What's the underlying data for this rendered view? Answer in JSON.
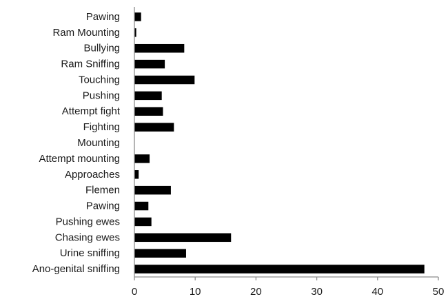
{
  "chart_data": {
    "type": "bar",
    "orientation": "horizontal",
    "title": "",
    "xlabel": "",
    "ylabel": "",
    "categories": [
      "Pawing",
      "Ram Mounting",
      "Bullying",
      "Ram Sniffing",
      "Touching",
      "Pushing",
      "Attempt fight",
      "Fighting",
      "Mounting",
      "Attempt mounting",
      "Approaches",
      "Flemen",
      "Pawing",
      "Pushing ewes",
      "Chasing ewes",
      "Urine sniffing",
      "Ano-genital sniffing"
    ],
    "values": [
      1.1,
      0.3,
      8.2,
      5.0,
      9.9,
      4.5,
      4.7,
      6.5,
      0,
      2.5,
      0.7,
      6.0,
      2.3,
      2.8,
      15.9,
      8.5,
      47.7
    ],
    "xlim": [
      0,
      50
    ],
    "xticks": [
      0,
      10,
      20,
      30,
      40,
      50
    ],
    "grid": false,
    "legend": "none",
    "bar_color": "#000000"
  }
}
